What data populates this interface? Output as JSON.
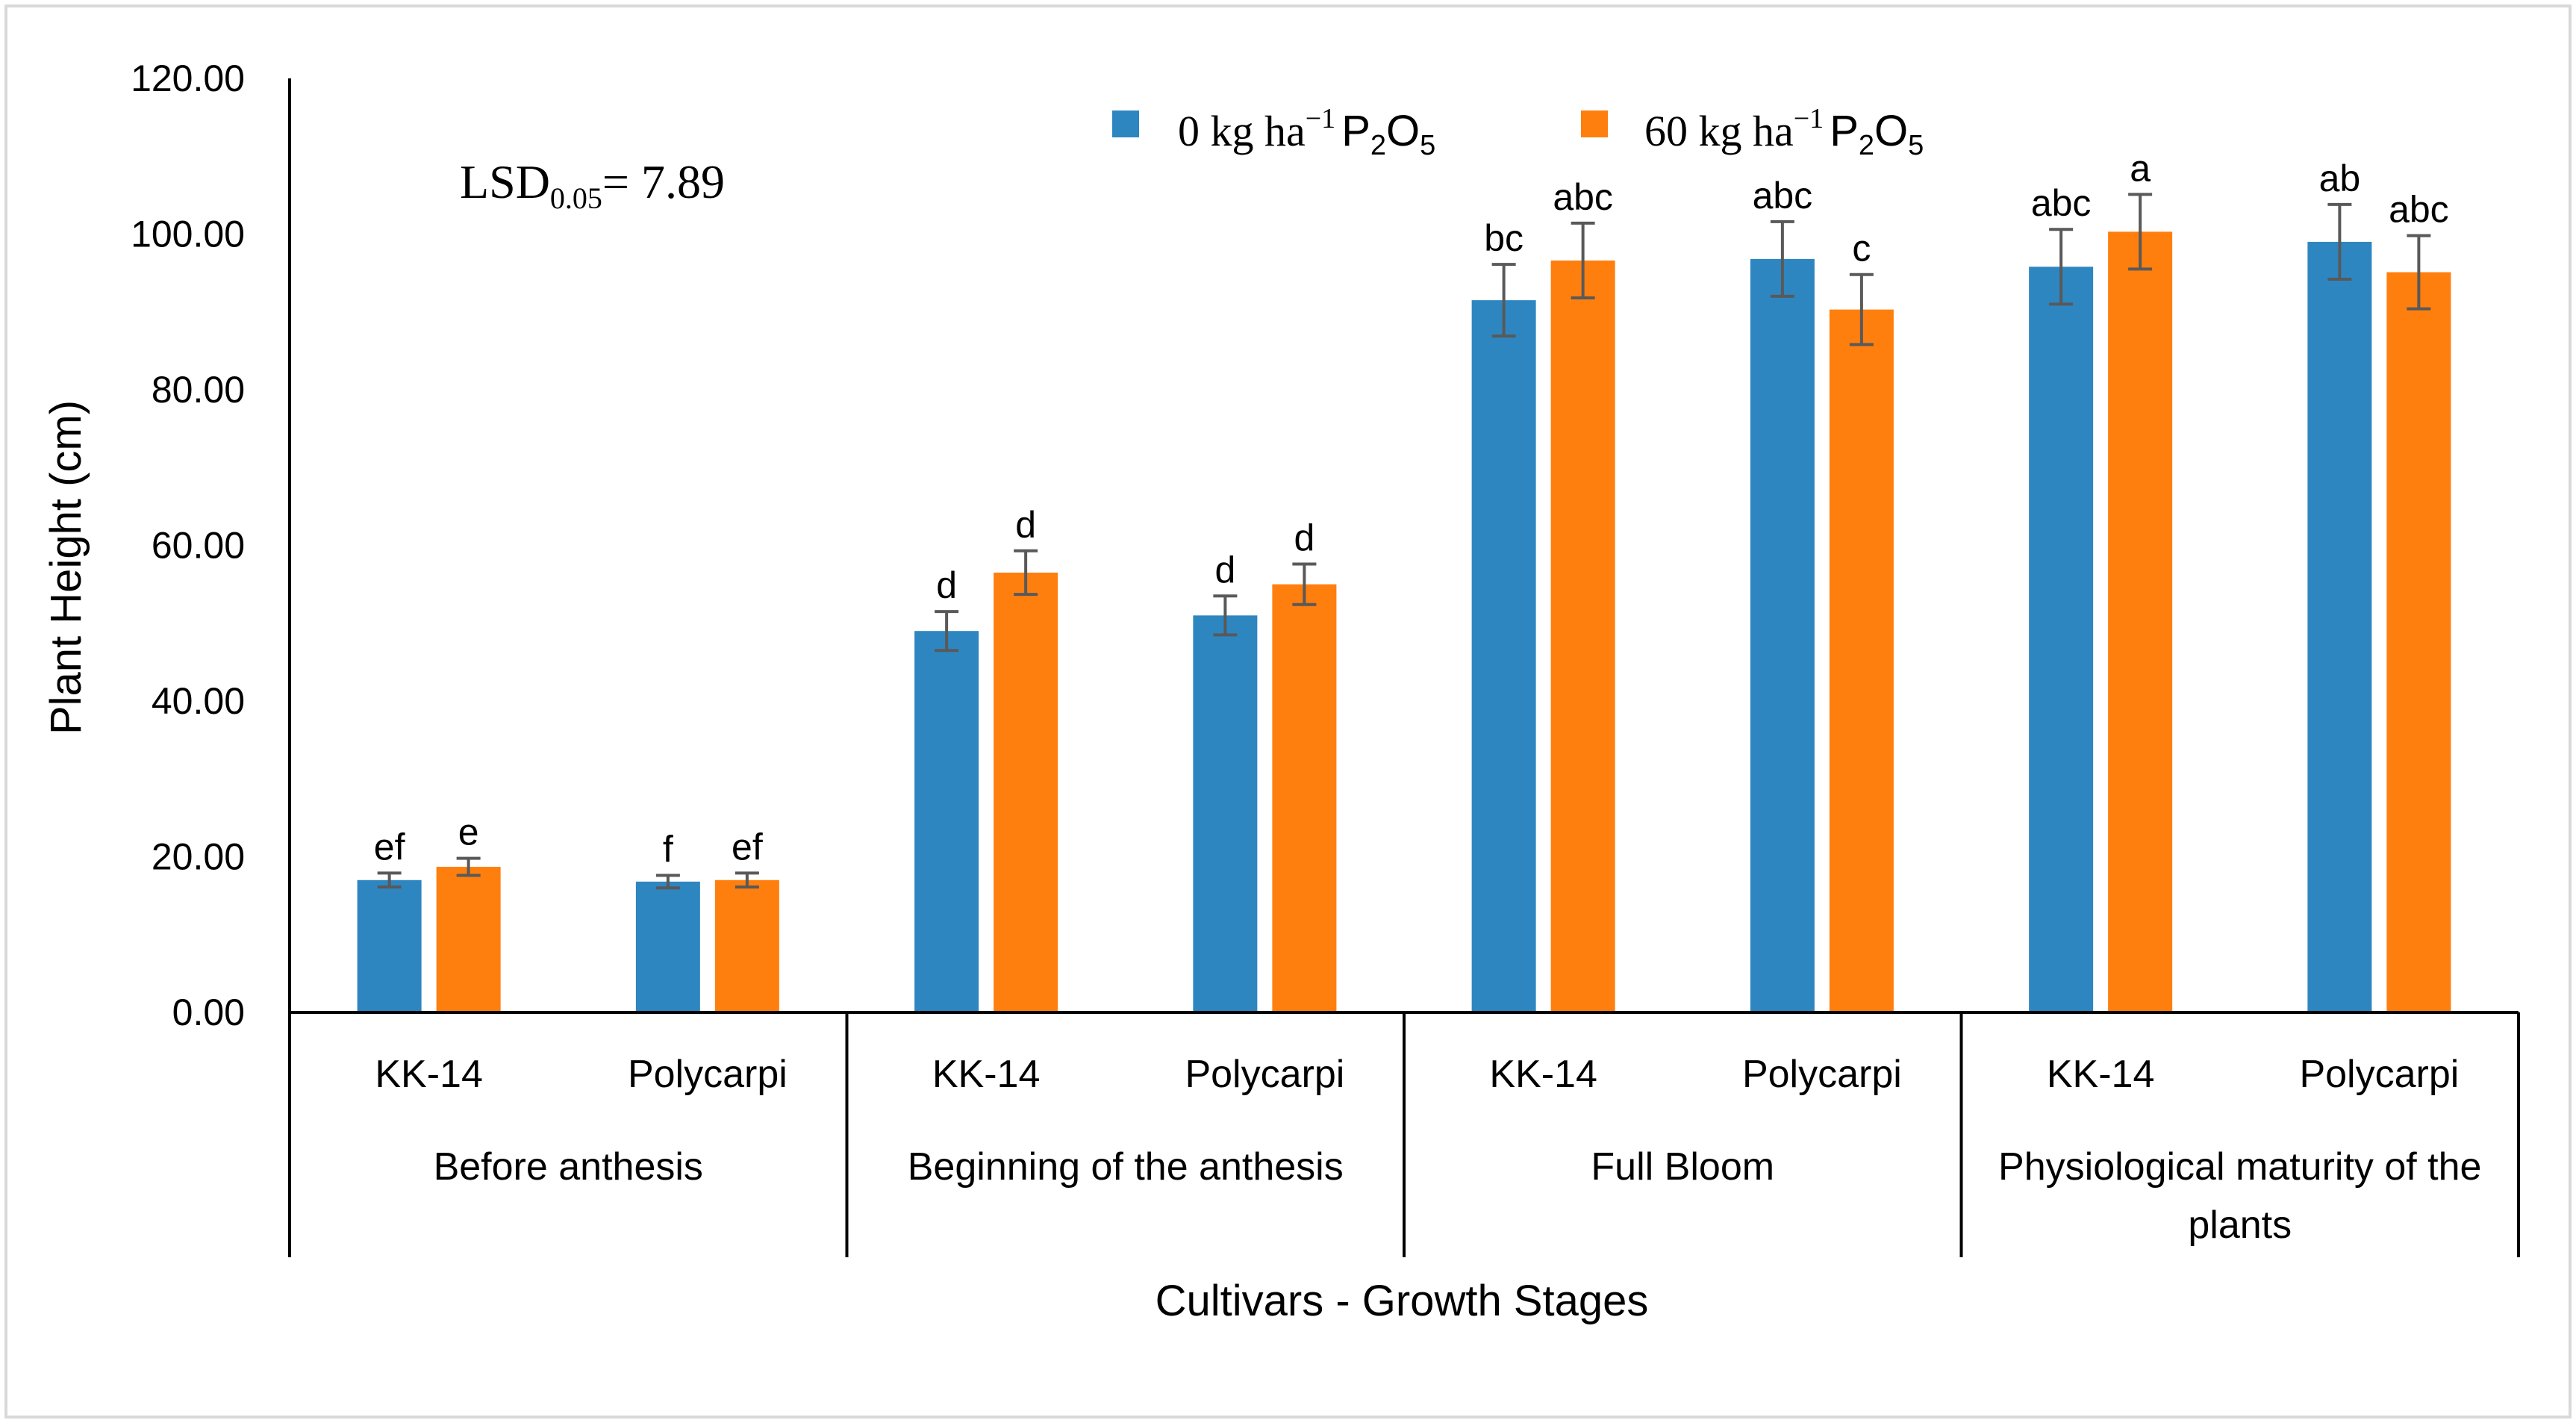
{
  "chart_data": {
    "type": "bar",
    "ylabel": "Plant Height (cm)",
    "xlabel": "Cultivars - Growth Stages",
    "ylim": [
      0,
      120
    ],
    "yticks": [
      "0.00",
      "20.00",
      "40.00",
      "60.00",
      "80.00",
      "100.00",
      "120.00"
    ],
    "grid": false,
    "legend_position": "top-center",
    "annotation": {
      "lsd_prefix": "LSD",
      "lsd_subscript": "0.05",
      "lsd_value": "= 7.89"
    },
    "groups": [
      {
        "label": "Before anthesis",
        "categories": [
          "KK-14",
          "Polycarpi"
        ]
      },
      {
        "label": "Beginning of the anthesis",
        "categories": [
          "KK-14",
          "Polycarpi"
        ]
      },
      {
        "label": "Full Bloom",
        "categories": [
          "KK-14",
          "Polycarpi"
        ]
      },
      {
        "label": "Physiological maturity of the plants",
        "label_lines": [
          "Physiological maturity of the",
          "plants"
        ],
        "categories": [
          "KK-14",
          "Polycarpi"
        ]
      }
    ],
    "series": [
      {
        "name": "0 kg ha⁻¹ P₂O₅",
        "legend_prefix": "0 kg ha",
        "legend_sup": "−1",
        "legend_chem": "P",
        "legend_sub1": "2",
        "legend_chem2": "O",
        "legend_sub2": "5",
        "color": "#2E86C1",
        "values": [
          17.0,
          16.8,
          49.0,
          51.0,
          91.5,
          96.8,
          95.8,
          99.0
        ],
        "errors": [
          0.9,
          0.8,
          2.5,
          2.5,
          4.6,
          4.8,
          4.8,
          4.8
        ],
        "letters": [
          "ef",
          "f",
          "d",
          "d",
          "bc",
          "abc",
          "abc",
          "ab"
        ]
      },
      {
        "name": "60 kg ha⁻¹ P₂O₅",
        "legend_prefix": "60 kg ha",
        "legend_sup": "−1",
        "legend_chem": "P",
        "legend_sub1": "2",
        "legend_chem2": "O",
        "legend_sub2": "5",
        "color": "#FF7F0E",
        "values": [
          18.7,
          17.0,
          56.5,
          55.0,
          96.6,
          90.3,
          100.3,
          95.1
        ],
        "errors": [
          1.1,
          0.9,
          2.8,
          2.6,
          4.8,
          4.5,
          4.8,
          4.7
        ],
        "letters": [
          "e",
          "ef",
          "d",
          "d",
          "abc",
          "c",
          "a",
          "abc"
        ]
      }
    ]
  }
}
